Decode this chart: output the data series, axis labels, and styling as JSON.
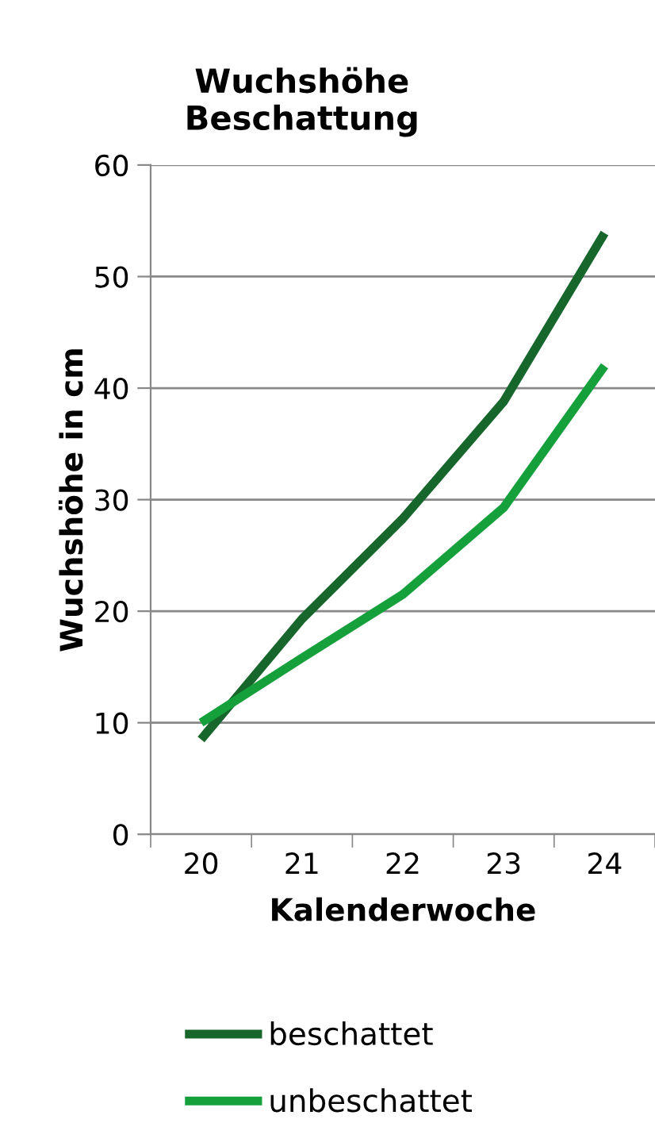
{
  "chart_data": {
    "type": "line",
    "title": "Wuchshöhe\nBeschattung",
    "xlabel": "Kalenderwoche",
    "ylabel": "Wuchshöhe in cm",
    "categories": [
      "20",
      "21",
      "22",
      "23",
      "24"
    ],
    "series": [
      {
        "name": "beschattet",
        "color": "#17662c",
        "values": [
          8.5,
          19.3,
          28.3,
          38.8,
          53.9
        ]
      },
      {
        "name": "unbeschattet",
        "color": "#16a03c",
        "values": [
          10,
          15.8,
          21.5,
          29.3,
          42
        ]
      }
    ],
    "ylim": [
      0,
      60
    ],
    "yticks": [
      0,
      10,
      20,
      30,
      40,
      50,
      60
    ],
    "grid": "y",
    "legend": "bottom",
    "marker": "none",
    "line_style": "solid"
  }
}
